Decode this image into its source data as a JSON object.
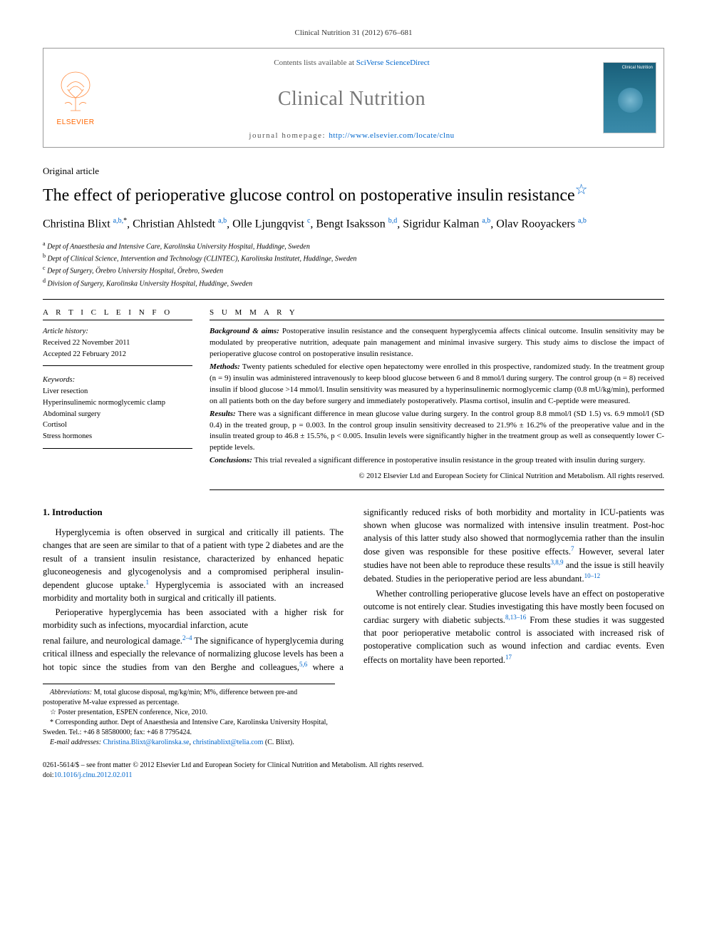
{
  "running_head": "Clinical Nutrition 31 (2012) 676–681",
  "header": {
    "contents_prefix": "Contents lists available at ",
    "contents_link": "SciVerse ScienceDirect",
    "journal": "Clinical Nutrition",
    "homepage_prefix": "journal homepage: ",
    "homepage_url": "http://www.elsevier.com/locate/clnu",
    "elsevier": "ELSEVIER",
    "cover_label": "Clinical Nutrition"
  },
  "article_type": "Original article",
  "title": "The effect of perioperative glucose control on postoperative insulin resistance",
  "title_star": "☆",
  "authors_html": "Christina Blixt <sup class='link'>a,b,</sup><sup class='star'>*</sup>, Christian Ahlstedt <sup class='link'>a,b</sup>, Olle Ljungqvist <sup class='link'>c</sup>, Bengt Isaksson <sup class='link'>b,d</sup>, Sigridur Kalman <sup class='link'>a,b</sup>, Olav Rooyackers <sup class='link'>a,b</sup>",
  "affiliations": [
    {
      "sup": "a",
      "text": "Dept of Anaesthesia and Intensive Care, Karolinska University Hospital, Huddinge, Sweden"
    },
    {
      "sup": "b",
      "text": "Dept of Clinical Science, Intervention and Technology (CLINTEC), Karolinska Institutet, Huddinge, Sweden"
    },
    {
      "sup": "c",
      "text": "Dept of Surgery, Örebro University Hospital, Örebro, Sweden"
    },
    {
      "sup": "d",
      "text": "Division of Surgery, Karolinska University Hospital, Huddinge, Sweden"
    }
  ],
  "article_info": {
    "heading": "A R T I C L E   I N F O",
    "history_label": "Article history:",
    "received": "Received 22 November 2011",
    "accepted": "Accepted 22 February 2012",
    "keywords_label": "Keywords:",
    "keywords": [
      "Liver resection",
      "Hyperinsulinemic normoglycemic clamp",
      "Abdominal surgery",
      "Cortisol",
      "Stress hormones"
    ]
  },
  "summary": {
    "heading": "S U M M A R Y",
    "background_label": "Background & aims:",
    "background": " Postoperative insulin resistance and the consequent hyperglycemia affects clinical outcome. Insulin sensitivity may be modulated by preoperative nutrition, adequate pain management and minimal invasive surgery. This study aims to disclose the impact of perioperative glucose control on postoperative insulin resistance.",
    "methods_label": "Methods:",
    "methods": " Twenty patients scheduled for elective open hepatectomy were enrolled in this prospective, randomized study. In the treatment group (n = 9) insulin was administered intravenously to keep blood glucose between 6 and 8 mmol/l during surgery. The control group (n = 8) received insulin if blood glucose >14 mmol/l. Insulin sensitivity was measured by a hyperinsulinemic normoglycemic clamp (0.8 mU/kg/min), performed on all patients both on the day before surgery and immediately postoperatively. Plasma cortisol, insulin and C-peptide were measured.",
    "results_label": "Results:",
    "results": " There was a significant difference in mean glucose value during surgery. In the control group 8.8 mmol/l (SD 1.5) vs. 6.9 mmol/l (SD 0.4) in the treated group, p = 0.003. In the control group insulin sensitivity decreased to 21.9% ± 16.2% of the preoperative value and in the insulin treated group to 46.8 ± 15.5%, p < 0.005. Insulin levels were significantly higher in the treatment group as well as consequently lower C-peptide levels.",
    "conclusions_label": "Conclusions:",
    "conclusions": " This trial revealed a significant difference in postoperative insulin resistance in the group treated with insulin during surgery.",
    "copyright": "© 2012 Elsevier Ltd and European Society for Clinical Nutrition and Metabolism. All rights reserved."
  },
  "body": {
    "section1_heading": "1. Introduction",
    "p1": "Hyperglycemia is often observed in surgical and critically ill patients. The changes that are seen are similar to that of a patient with type 2 diabetes and are the result of a transient insulin resistance, characterized by enhanced hepatic gluconeogenesis and glycogenolysis and a compromised peripheral insulin-dependent glucose uptake.",
    "p1_sup": "1",
    "p1b": " Hyperglycemia is associated with an increased morbidity and mortality both in surgical and critically ill patients.",
    "p2": "Perioperative hyperglycemia has been associated with a higher risk for morbidity such as infections, myocardial infarction, acute",
    "p3": "renal failure, and neurological damage.",
    "p3_sup": "2–4",
    "p3b": " The significance of hyperglycemia during critical illness and especially the relevance of normalizing glucose levels has been a hot topic since the studies from van den Berghe and colleagues,",
    "p3_sup2": "5,6",
    "p3c": " where a significantly reduced risks of both morbidity and mortality in ICU-patients was shown when glucose was normalized with intensive insulin treatment. Post-hoc analysis of this latter study also showed that normoglycemia rather than the insulin dose given was responsible for these positive effects.",
    "p3_sup3": "7",
    "p3d": " However, several later studies have not been able to reproduce these results",
    "p3_sup4": "3,8,9",
    "p3e": " and the issue is still heavily debated. Studies in the perioperative period are less abundant.",
    "p3_sup5": "10–12",
    "p4": "Whether controlling perioperative glucose levels have an effect on postoperative outcome is not entirely clear. Studies investigating this have mostly been focused on cardiac surgery with diabetic subjects.",
    "p4_sup": "8,13–16",
    "p4b": " From these studies it was suggested that poor perioperative metabolic control is associated with increased risk of postoperative complication such as wound infection and cardiac events. Even effects on mortality have been reported.",
    "p4_sup2": "17"
  },
  "footnotes": {
    "abbrev_label": "Abbreviations:",
    "abbrev": " M, total glucose disposal, mg/kg/min; M%, difference between pre-and postoperative M-value expressed as percentage.",
    "poster": "☆ Poster presentation, ESPEN conference, Nice, 2010.",
    "corresp": "* Corresponding author. Dept of Anaesthesia and Intensive Care, Karolinska University Hospital, Sweden. Tel.: +46 8 58580000; fax: +46 8 7795424.",
    "email_label": "E-mail addresses:",
    "email1": "Christina.Blixt@karolinska.se",
    "email_sep": ", ",
    "email2": "christinablixt@telia.com",
    "email_who": " (C. Blixt)."
  },
  "footer": {
    "issn": "0261-5614/$ – see front matter © 2012 Elsevier Ltd and European Society for Clinical Nutrition and Metabolism. All rights reserved.",
    "doi_label": "doi:",
    "doi": "10.1016/j.clnu.2012.02.011"
  }
}
